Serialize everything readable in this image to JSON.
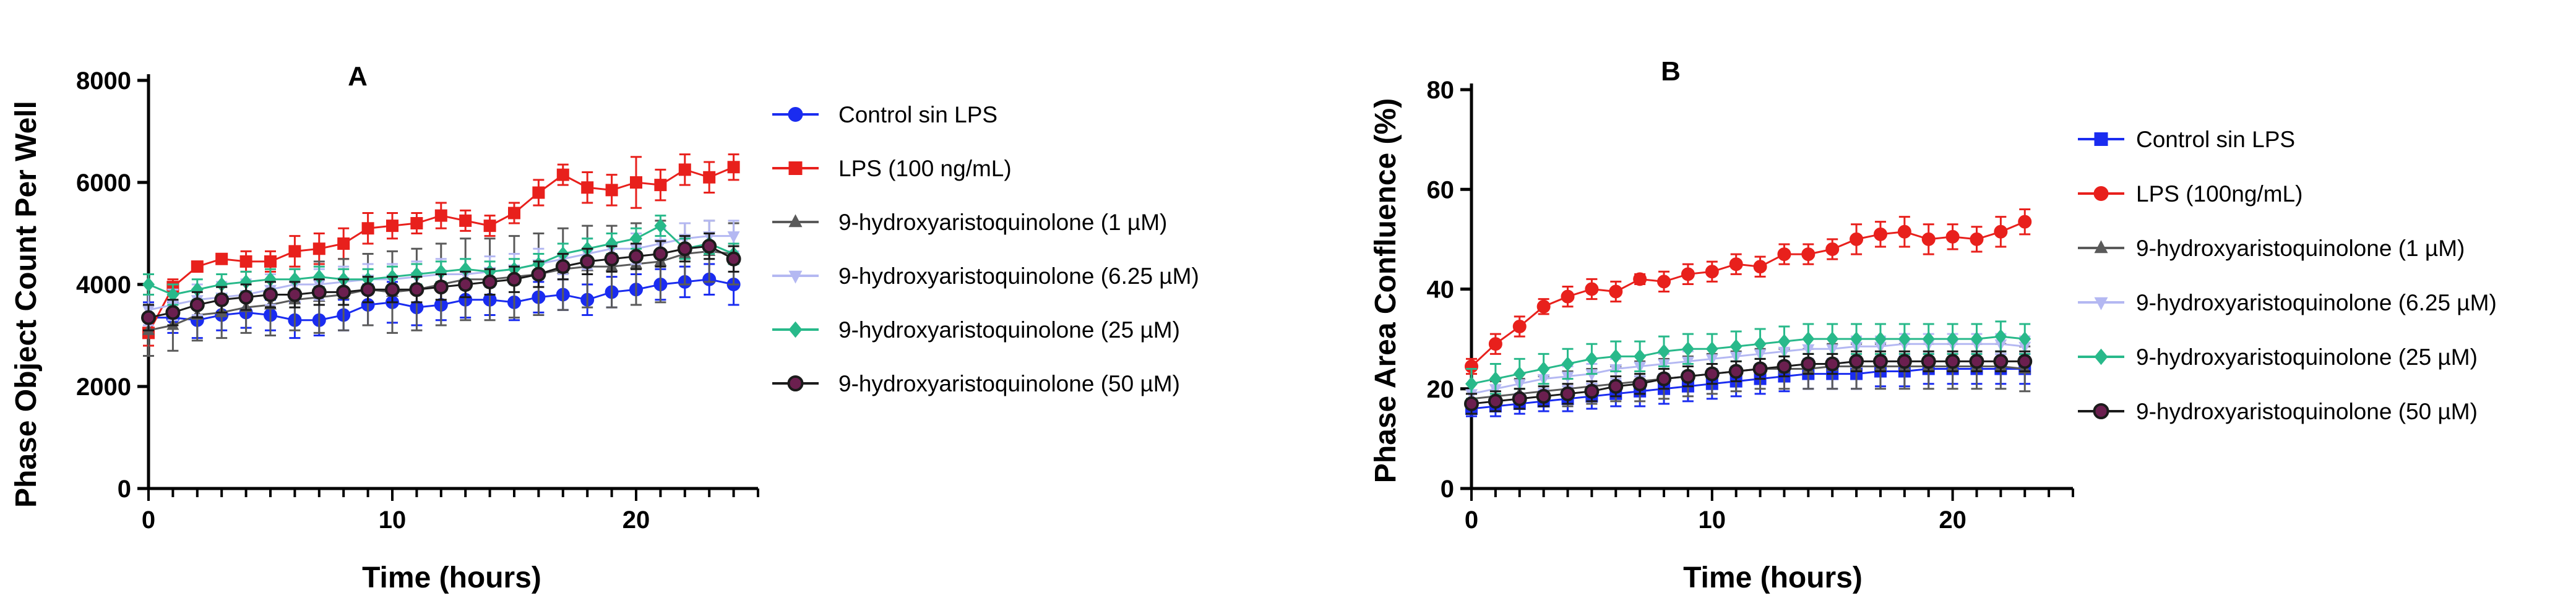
{
  "colors": {
    "control": "#1a2cf0",
    "lps": "#e8201c",
    "h1": "#5a5a5a",
    "h625": "#b4b8f2",
    "h25": "#28b98a",
    "h50": "#1b1b1b",
    "h50_fill": "#6b1f4f"
  },
  "chart_data": [
    {
      "type": "line",
      "panel": "A",
      "xlabel": "Time (hours)",
      "ylabel": "Phase Object Count Per Well",
      "xlim": [
        0,
        25
      ],
      "ylim": [
        0,
        8000
      ],
      "xticks": [
        "0",
        "10",
        "20"
      ],
      "xtick_values": [
        0,
        10,
        20
      ],
      "yticks": [
        "0",
        "2000",
        "4000",
        "6000",
        "8000"
      ],
      "ytick_values": [
        0,
        2000,
        4000,
        6000,
        8000
      ],
      "x": [
        0,
        1,
        2,
        3,
        4,
        5,
        6,
        7,
        8,
        9,
        10,
        11,
        12,
        13,
        14,
        15,
        16,
        17,
        18,
        19,
        20,
        21,
        22,
        23,
        24
      ],
      "series": [
        {
          "name": "Control sin LPS",
          "color_key": "control",
          "marker": "circle",
          "values": [
            3350,
            3350,
            3300,
            3400,
            3450,
            3400,
            3300,
            3300,
            3400,
            3600,
            3650,
            3550,
            3600,
            3700,
            3700,
            3650,
            3750,
            3800,
            3700,
            3850,
            3900,
            4000,
            4050,
            4100,
            4000
          ],
          "errors": [
            300,
            300,
            350,
            300,
            300,
            300,
            350,
            300,
            300,
            400,
            400,
            350,
            300,
            350,
            300,
            350,
            300,
            300,
            300,
            300,
            300,
            300,
            300,
            300,
            400
          ]
        },
        {
          "name": "LPS (100 ng/mL)",
          "color_key": "lps",
          "marker": "square",
          "values": [
            3050,
            3950,
            4350,
            4500,
            4450,
            4450,
            4650,
            4700,
            4800,
            5100,
            5150,
            5200,
            5350,
            5250,
            5150,
            5400,
            5800,
            6150,
            5900,
            5850,
            6000,
            5950,
            6250,
            6100,
            6300
          ],
          "errors": [
            250,
            150,
            100,
            100,
            200,
            200,
            300,
            300,
            300,
            300,
            250,
            200,
            250,
            200,
            200,
            200,
            250,
            200,
            300,
            300,
            500,
            300,
            300,
            300,
            250
          ]
        },
        {
          "name": "9-hydroxyaristoquinolone  (1 µM)",
          "color_key": "h1",
          "marker": "triangle",
          "values": [
            3100,
            3200,
            3400,
            3450,
            3550,
            3600,
            3700,
            3750,
            3800,
            3900,
            3850,
            3900,
            4000,
            4100,
            4100,
            4150,
            4200,
            4300,
            4350,
            4350,
            4400,
            4450,
            4600,
            4650,
            4600
          ],
          "errors": [
            500,
            500,
            500,
            500,
            500,
            600,
            600,
            700,
            700,
            700,
            800,
            800,
            800,
            800,
            800,
            800,
            800,
            800,
            800,
            800,
            800,
            800,
            600,
            600,
            600
          ]
        },
        {
          "name": "9-hydroxyaristoquinolone  (6.25 µM)",
          "color_key": "h625",
          "marker": "triangle-down",
          "values": [
            3500,
            3600,
            3700,
            3750,
            3800,
            3900,
            4000,
            4000,
            4050,
            4100,
            4100,
            4150,
            4200,
            4200,
            4250,
            4300,
            4400,
            4500,
            4600,
            4700,
            4700,
            4800,
            4900,
            4950,
            4950
          ],
          "errors": [
            300,
            300,
            300,
            300,
            300,
            300,
            300,
            300,
            300,
            300,
            300,
            300,
            300,
            300,
            300,
            300,
            300,
            300,
            300,
            300,
            300,
            300,
            300,
            300,
            300
          ]
        },
        {
          "name": "9-hydroxyaristoquinolone  (25 µM)",
          "color_key": "h25",
          "marker": "diamond",
          "values": [
            4000,
            3800,
            3900,
            4000,
            4050,
            4100,
            4100,
            4150,
            4100,
            4100,
            4150,
            4200,
            4250,
            4300,
            4250,
            4300,
            4400,
            4600,
            4700,
            4800,
            4900,
            5150,
            4700,
            4800,
            4600
          ],
          "errors": [
            200,
            200,
            200,
            200,
            200,
            200,
            200,
            200,
            200,
            200,
            200,
            200,
            200,
            200,
            200,
            200,
            200,
            200,
            200,
            200,
            200,
            200,
            200,
            200,
            200
          ]
        },
        {
          "name": "9-hydroxyaristoquinolone  (50 µM)",
          "color_key": "h50",
          "marker": "circle-open",
          "values": [
            3350,
            3450,
            3600,
            3700,
            3750,
            3800,
            3800,
            3850,
            3850,
            3900,
            3900,
            3900,
            3950,
            4000,
            4050,
            4100,
            4200,
            4350,
            4450,
            4500,
            4550,
            4600,
            4700,
            4750,
            4500
          ],
          "errors": [
            250,
            250,
            250,
            250,
            250,
            250,
            250,
            250,
            250,
            250,
            250,
            250,
            250,
            250,
            250,
            250,
            250,
            250,
            250,
            250,
            250,
            250,
            250,
            250,
            250
          ]
        }
      ]
    },
    {
      "type": "line",
      "panel": "B",
      "xlabel": "Time (hours)",
      "ylabel": "Phase Area Confluence (%)",
      "xlim": [
        0,
        25
      ],
      "ylim": [
        0,
        80
      ],
      "xticks": [
        "0",
        "10",
        "20"
      ],
      "xtick_values": [
        0,
        10,
        20
      ],
      "yticks": [
        "0",
        "20",
        "40",
        "60",
        "80"
      ],
      "ytick_values": [
        0,
        20,
        40,
        60,
        80
      ],
      "x": [
        0,
        1,
        2,
        3,
        4,
        5,
        6,
        7,
        8,
        9,
        10,
        11,
        12,
        13,
        14,
        15,
        16,
        17,
        18,
        19,
        20,
        21,
        22,
        23
      ],
      "series": [
        {
          "name": "Control sin LPS",
          "color_key": "control",
          "marker": "square",
          "values": [
            16,
            16.5,
            17,
            17.5,
            18,
            18.5,
            19,
            19.5,
            20,
            20.5,
            21,
            21.5,
            22,
            22.5,
            23,
            23,
            23,
            23.5,
            23.5,
            24,
            24,
            24,
            24,
            24
          ],
          "errors": [
            1.5,
            2,
            2,
            2,
            2.5,
            2.5,
            2.5,
            3,
            3,
            3,
            3,
            3,
            3,
            3,
            3,
            3,
            3,
            3,
            3,
            3,
            3,
            3,
            3,
            3
          ]
        },
        {
          "name": "LPS (100ng/mL)",
          "color_key": "lps",
          "marker": "circle",
          "values": [
            24.5,
            29,
            32.5,
            36.5,
            38.5,
            40,
            39.5,
            42,
            41.5,
            43,
            43.5,
            45,
            44.5,
            47,
            47,
            48,
            50,
            51,
            51.5,
            50,
            50.5,
            50,
            51.5,
            53.5
          ],
          "errors": [
            1.5,
            2,
            2,
            1.5,
            2,
            2,
            2,
            1,
            2,
            2,
            2,
            2,
            2,
            2,
            2,
            2,
            3,
            2.5,
            3,
            3,
            2.5,
            2.5,
            3,
            2.5
          ]
        },
        {
          "name": "9-hydroxyaristoquinolone  (1 µM)",
          "color_key": "h1",
          "marker": "triangle",
          "values": [
            18,
            18.5,
            19,
            19.5,
            20,
            20.5,
            21,
            21.5,
            22,
            22.5,
            23,
            23.5,
            24,
            24,
            24,
            24.5,
            24.5,
            24.5,
            24.5,
            24.5,
            24.5,
            24.5,
            24.5,
            24
          ],
          "errors": [
            3,
            3,
            3,
            3,
            3.5,
            3.5,
            3.5,
            4,
            4,
            4,
            4,
            4,
            4,
            4,
            4,
            4.5,
            4.5,
            4.5,
            4.5,
            4.5,
            4.5,
            4.5,
            4.5,
            4.5
          ]
        },
        {
          "name": "9-hydroxyaristoquinolone  (6.25 µM)",
          "color_key": "h625",
          "marker": "triangle-down",
          "values": [
            19,
            20,
            21,
            22,
            22.5,
            23,
            24,
            24.5,
            25,
            25.5,
            26,
            26.5,
            27,
            27.5,
            28,
            28,
            28.5,
            28.5,
            29,
            29,
            29,
            29,
            29,
            28.5
          ],
          "errors": [
            2,
            2,
            2,
            2,
            2,
            2,
            2,
            2,
            2,
            2,
            2,
            2,
            2,
            2,
            2,
            2,
            2,
            2,
            2,
            2,
            2,
            2,
            2,
            2
          ]
        },
        {
          "name": "9-hydroxyaristoquinolone  (25 µM)",
          "color_key": "h25",
          "marker": "diamond",
          "values": [
            21,
            22,
            23,
            24,
            25,
            26,
            26.5,
            26.5,
            27.5,
            28,
            28,
            28.5,
            29,
            29.5,
            30,
            30,
            30,
            30,
            30,
            30,
            30,
            30,
            30.5,
            30
          ],
          "errors": [
            3,
            3,
            3,
            3,
            3,
            3,
            3,
            3,
            3,
            3,
            3,
            3,
            3,
            3,
            3,
            3,
            3,
            3,
            3,
            3,
            3,
            3,
            3,
            3
          ]
        },
        {
          "name": "9-hydroxyaristoquinolone  (50 µM)",
          "color_key": "h50",
          "marker": "circle-open",
          "values": [
            17,
            17.5,
            18,
            18.5,
            19,
            19.5,
            20.5,
            21,
            22,
            22.5,
            23,
            23.5,
            24,
            24.5,
            25,
            25,
            25.5,
            25.5,
            25.5,
            25.5,
            25.5,
            25.5,
            25.5,
            25.5
          ],
          "errors": [
            2,
            2,
            2,
            2,
            2,
            2,
            2,
            2,
            2,
            2,
            2,
            2,
            2,
            2,
            2,
            2,
            2,
            2,
            2,
            2,
            2,
            2,
            2,
            2
          ]
        }
      ]
    }
  ]
}
